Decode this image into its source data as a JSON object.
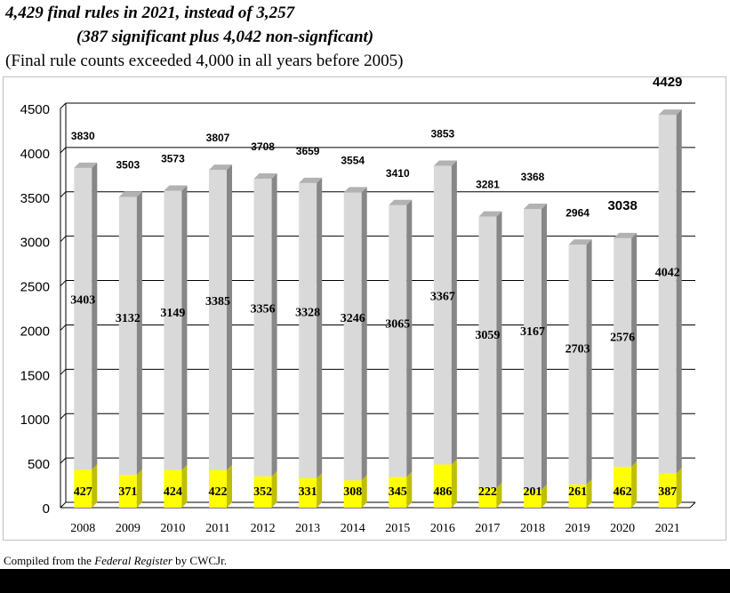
{
  "header": {
    "title_line1": "4,429 final rules in 2021, instead of 3,257",
    "title_line2": "(387 significant plus  4,042 non-signficant)",
    "subtitle": "(Final rule counts exceeded 4,000 in all years before 2005)"
  },
  "footer": {
    "prefix": "Compiled from the ",
    "source": "Federal Register",
    "suffix": "  by CWCJr."
  },
  "colors": {
    "significant": "#ffff00",
    "non_significant": "#d9d9d9",
    "gridline": "#000000"
  },
  "chart_data": {
    "type": "bar",
    "stacked": true,
    "categories": [
      "2008",
      "2009",
      "2010",
      "2011",
      "2012",
      "2013",
      "2014",
      "2015",
      "2016",
      "2017",
      "2018",
      "2019",
      "2020",
      "2021"
    ],
    "series": [
      {
        "key": "significant",
        "values": [
          427,
          371,
          424,
          422,
          352,
          331,
          308,
          345,
          486,
          222,
          201,
          261,
          462,
          387
        ]
      },
      {
        "key": "non_significant",
        "values": [
          3403,
          3132,
          3149,
          3385,
          3356,
          3328,
          3246,
          3065,
          3367,
          3059,
          3167,
          2703,
          2576,
          4042
        ]
      }
    ],
    "totals": [
      3830,
      3503,
      3573,
      3807,
      3708,
      3659,
      3554,
      3410,
      3853,
      3281,
      3368,
      2964,
      3038,
      4429
    ],
    "y_ticks": [
      0,
      500,
      1000,
      1500,
      2000,
      2500,
      3000,
      3500,
      4000,
      4500
    ],
    "ylim": [
      0,
      4500
    ],
    "grid": true,
    "legend": "none",
    "style": "3d-bars"
  }
}
